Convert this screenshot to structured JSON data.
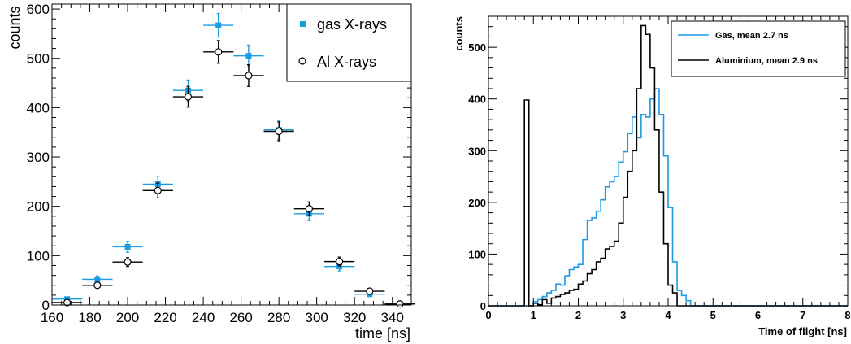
{
  "chart_data": [
    {
      "type": "scatter",
      "title": "",
      "xlabel": "time [ns]",
      "ylabel": "counts",
      "xlim": [
        160,
        350
      ],
      "ylim": [
        0,
        610
      ],
      "grid": false,
      "legend": {
        "position": "top-right",
        "entries": [
          "gas X-rays",
          "Al X-rays"
        ]
      },
      "x_ticks": [
        "160",
        "180",
        "200",
        "220",
        "240",
        "260",
        "280",
        "300",
        "320",
        "340"
      ],
      "y_ticks": [
        "0",
        "100",
        "200",
        "300",
        "400",
        "500",
        "600"
      ],
      "series": [
        {
          "name": "gas X-rays",
          "marker": "filled-square",
          "color": "#1a9be6",
          "x": [
            168,
            184,
            200,
            216,
            232,
            248,
            264,
            280,
            296,
            312,
            328,
            344
          ],
          "y": [
            12,
            52,
            118,
            245,
            435,
            567,
            505,
            355,
            185,
            78,
            22,
            2
          ],
          "yerr": [
            4,
            7,
            11,
            16,
            21,
            24,
            22,
            19,
            14,
            9,
            5,
            1.5
          ],
          "xerr": 8
        },
        {
          "name": "Al X-rays",
          "marker": "open-circle",
          "color": "#000000",
          "x": [
            168,
            184,
            200,
            216,
            232,
            248,
            264,
            280,
            296,
            312,
            328,
            344
          ],
          "y": [
            5,
            40,
            87,
            232,
            422,
            513,
            465,
            352,
            195,
            88,
            28,
            2
          ],
          "yerr": [
            2,
            6,
            9,
            15,
            21,
            23,
            22,
            19,
            14,
            9,
            5,
            1.5
          ],
          "xerr": 8
        }
      ]
    },
    {
      "type": "line",
      "title": "",
      "xlabel": "Time of flight [ns]",
      "ylabel": "counts",
      "xlim": [
        0,
        8
      ],
      "ylim": [
        0,
        560
      ],
      "grid": false,
      "legend": {
        "position": "top-right",
        "entries": [
          "Gas, mean 2.7 ns",
          "Aluminium, mean 2.9 ns"
        ]
      },
      "x_ticks": [
        "0",
        "1",
        "2",
        "3",
        "4",
        "5",
        "6",
        "7",
        "8"
      ],
      "y_ticks": [
        "0",
        "100",
        "200",
        "300",
        "400",
        "500"
      ],
      "bin_width": 0.1,
      "series": [
        {
          "name": "Gas, mean 2.7 ns",
          "color": "#1a9be6",
          "step": true,
          "x_start": 1.0,
          "bin_width": 0.1,
          "values": [
            8,
            12,
            18,
            25,
            30,
            42,
            40,
            58,
            70,
            75,
            80,
            128,
            165,
            170,
            183,
            205,
            230,
            240,
            250,
            278,
            298,
            333,
            365,
            325,
            370,
            365,
            400,
            420,
            370,
            290,
            190,
            85,
            30,
            20,
            10,
            0
          ]
        },
        {
          "name": "Aluminium, mean 2.9 ns",
          "color": "#000000",
          "step": true,
          "x_start": 0.8,
          "bin_width": 0.1,
          "values": [
            398,
            0,
            5,
            2,
            12,
            5,
            15,
            18,
            22,
            25,
            30,
            32,
            42,
            48,
            62,
            70,
            85,
            92,
            110,
            115,
            125,
            160,
            210,
            260,
            300,
            420,
            542,
            525,
            460,
            340,
            220,
            120,
            40,
            25,
            0
          ]
        }
      ]
    }
  ]
}
